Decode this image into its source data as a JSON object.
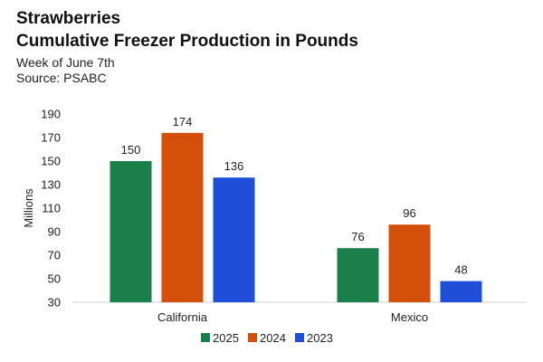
{
  "chart_data": {
    "type": "bar",
    "title": "Strawberries",
    "subtitle": "Cumulative Freezer Production in Pounds",
    "notes": [
      "Week of June 7th",
      "Source: PSABC"
    ],
    "xlabel": "",
    "ylabel": "Millions",
    "categories": [
      "California",
      "Mexico"
    ],
    "series": [
      {
        "name": "2025",
        "color": "#1a7f4b",
        "values": [
          150,
          76
        ]
      },
      {
        "name": "2024",
        "color": "#d4500a",
        "values": [
          174,
          96
        ]
      },
      {
        "name": "2023",
        "color": "#1f4fd8",
        "values": [
          136,
          48
        ]
      }
    ],
    "ylim": [
      30,
      190
    ],
    "yticks": [
      30,
      50,
      70,
      90,
      110,
      130,
      150,
      170,
      190
    ],
    "legend_position": "bottom-center",
    "grid": false
  }
}
